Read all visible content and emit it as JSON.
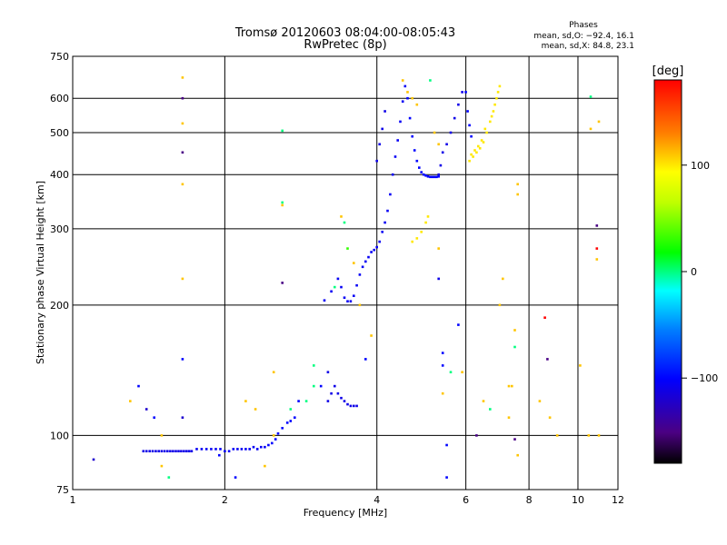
{
  "chart_data": {
    "type": "scatter",
    "title": "Tromsø 20120603 08:04:00-08:05:43",
    "subtitle": "RwPretec (8p)",
    "xlabel": "Frequency [MHz]",
    "ylabel": "Stationary phase Virtual Height [km]",
    "x_scale": "log",
    "y_scale": "log",
    "xlim": [
      1,
      12
    ],
    "ylim": [
      75,
      750
    ],
    "x_ticks": [
      1,
      2,
      4,
      6,
      8,
      10,
      12
    ],
    "y_ticks": [
      75,
      100,
      200,
      300,
      400,
      500,
      600,
      750
    ],
    "grid": true,
    "stats": {
      "heading": "Phases",
      "line1": "mean, sd,O: −92.4, 16.1",
      "line2": "mean, sd,X:  84.8, 23.1"
    },
    "colorbar": {
      "label": "[deg]",
      "min": -180,
      "max": 180,
      "ticks": [
        100,
        0,
        -100
      ],
      "placement": "right"
    },
    "series": [
      {
        "points": [
          [
            1.38,
            92,
            -110
          ],
          [
            1.4,
            92,
            -110
          ],
          [
            1.42,
            92,
            -110
          ],
          [
            1.44,
            92,
            -110
          ],
          [
            1.46,
            92,
            -110
          ],
          [
            1.48,
            92,
            -110
          ],
          [
            1.5,
            92,
            -110
          ],
          [
            1.52,
            92,
            -110
          ],
          [
            1.54,
            92,
            -110
          ],
          [
            1.56,
            92,
            -110
          ],
          [
            1.58,
            92,
            -110
          ],
          [
            1.6,
            92,
            -110
          ],
          [
            1.62,
            92,
            -110
          ],
          [
            1.64,
            92,
            -110
          ],
          [
            1.66,
            92,
            -110
          ],
          [
            1.68,
            92,
            -110
          ],
          [
            1.7,
            92,
            -110
          ],
          [
            1.72,
            92,
            -110
          ],
          [
            1.76,
            93,
            -105
          ],
          [
            1.8,
            93,
            -105
          ],
          [
            1.84,
            93,
            -105
          ],
          [
            1.88,
            93,
            -105
          ],
          [
            1.92,
            93,
            -105
          ],
          [
            1.96,
            93,
            -105
          ],
          [
            2.0,
            92,
            -105
          ],
          [
            2.04,
            92,
            -105
          ],
          [
            2.08,
            93,
            -105
          ],
          [
            2.12,
            93,
            -105
          ],
          [
            2.16,
            93,
            -105
          ],
          [
            2.2,
            93,
            -105
          ],
          [
            2.24,
            93,
            -105
          ],
          [
            2.28,
            94,
            -105
          ],
          [
            2.32,
            93,
            -105
          ],
          [
            2.36,
            94,
            -105
          ],
          [
            2.4,
            94,
            -105
          ],
          [
            2.44,
            95,
            -100
          ],
          [
            2.48,
            96,
            -100
          ],
          [
            2.52,
            98,
            -100
          ],
          [
            2.55,
            101,
            -100
          ],
          [
            2.6,
            104,
            -100
          ],
          [
            2.66,
            107,
            -100
          ],
          [
            2.7,
            108,
            -100
          ],
          [
            2.75,
            110,
            -100
          ],
          [
            3.2,
            120,
            -110
          ],
          [
            3.25,
            125,
            -110
          ],
          [
            3.3,
            130,
            -110
          ],
          [
            3.35,
            125,
            -110
          ],
          [
            3.4,
            122,
            -110
          ],
          [
            3.45,
            120,
            -110
          ],
          [
            3.5,
            118,
            -110
          ],
          [
            3.55,
            117,
            -110
          ],
          [
            3.6,
            117,
            -110
          ],
          [
            3.65,
            117,
            -110
          ],
          [
            3.15,
            205,
            -105
          ],
          [
            3.25,
            215,
            -105
          ],
          [
            3.35,
            230,
            -105
          ],
          [
            3.4,
            220,
            -105
          ],
          [
            3.45,
            208,
            -105
          ],
          [
            3.5,
            204,
            -105
          ],
          [
            3.55,
            204,
            -105
          ],
          [
            3.6,
            210,
            -105
          ],
          [
            3.65,
            222,
            -105
          ],
          [
            3.7,
            235,
            -105
          ],
          [
            3.75,
            245,
            -105
          ],
          [
            3.8,
            252,
            -105
          ],
          [
            3.85,
            258,
            -105
          ],
          [
            3.9,
            265,
            -105
          ],
          [
            3.95,
            268,
            -105
          ],
          [
            4.0,
            272,
            -105
          ],
          [
            4.05,
            280,
            -105
          ],
          [
            4.1,
            295,
            -105
          ],
          [
            4.15,
            310,
            -105
          ],
          [
            4.2,
            330,
            -105
          ],
          [
            4.25,
            360,
            -105
          ],
          [
            4.3,
            400,
            -105
          ],
          [
            4.35,
            440,
            -105
          ],
          [
            4.4,
            480,
            -105
          ],
          [
            4.45,
            530,
            -105
          ],
          [
            4.5,
            590,
            -105
          ],
          [
            4.55,
            640,
            -105
          ],
          [
            4.0,
            430,
            -110
          ],
          [
            4.05,
            470,
            -110
          ],
          [
            4.1,
            510,
            -110
          ],
          [
            4.15,
            560,
            -110
          ],
          [
            4.6,
            600,
            -100
          ],
          [
            4.65,
            540,
            -100
          ],
          [
            4.7,
            490,
            -100
          ],
          [
            4.75,
            455,
            -100
          ],
          [
            4.8,
            430,
            -100
          ],
          [
            4.85,
            415,
            -100
          ],
          [
            4.9,
            405,
            -100
          ],
          [
            4.95,
            400,
            -100
          ],
          [
            5.0,
            398,
            -100
          ],
          [
            5.05,
            396,
            -100
          ],
          [
            5.1,
            395,
            -100
          ],
          [
            5.15,
            395,
            -100
          ],
          [
            5.2,
            395,
            -100
          ],
          [
            5.25,
            395,
            -100
          ],
          [
            5.3,
            396,
            -100
          ],
          [
            5.3,
            400,
            -110
          ],
          [
            5.35,
            420,
            -110
          ],
          [
            5.4,
            450,
            -110
          ],
          [
            5.5,
            470,
            -110
          ],
          [
            5.6,
            500,
            -110
          ],
          [
            5.7,
            540,
            -110
          ],
          [
            5.8,
            580,
            -110
          ],
          [
            5.9,
            620,
            -110
          ],
          [
            6.0,
            620,
            -100
          ],
          [
            6.05,
            560,
            -100
          ],
          [
            6.1,
            520,
            -100
          ],
          [
            6.15,
            490,
            -100
          ],
          [
            4.7,
            280,
            100
          ],
          [
            4.8,
            285,
            100
          ],
          [
            4.9,
            295,
            100
          ],
          [
            5.0,
            310,
            100
          ],
          [
            5.05,
            320,
            100
          ],
          [
            6.1,
            430,
            100
          ],
          [
            6.2,
            440,
            100
          ],
          [
            6.3,
            450,
            100
          ],
          [
            6.4,
            460,
            100
          ],
          [
            6.5,
            475,
            100
          ],
          [
            6.6,
            500,
            100
          ],
          [
            6.7,
            530,
            100
          ],
          [
            6.8,
            560,
            100
          ],
          [
            6.9,
            600,
            100
          ],
          [
            7.0,
            640,
            100
          ],
          [
            6.15,
            445,
            100
          ],
          [
            6.25,
            455,
            100
          ],
          [
            6.35,
            465,
            100
          ],
          [
            6.45,
            480,
            100
          ],
          [
            6.55,
            510,
            100
          ],
          [
            6.75,
            545,
            100
          ],
          [
            6.85,
            580,
            100
          ],
          [
            6.95,
            620,
            100
          ]
        ]
      }
    ],
    "noise_points": [
      [
        1.1,
        88,
        -120
      ],
      [
        1.3,
        120,
        110
      ],
      [
        1.35,
        130,
        -100
      ],
      [
        1.4,
        115,
        -120
      ],
      [
        1.45,
        110,
        -100
      ],
      [
        1.5,
        100,
        110
      ],
      [
        1.5,
        85,
        110
      ],
      [
        1.55,
        80,
        0
      ],
      [
        1.65,
        450,
        -150
      ],
      [
        1.65,
        380,
        110
      ],
      [
        1.65,
        230,
        110
      ],
      [
        1.65,
        150,
        -100
      ],
      [
        1.65,
        600,
        -150
      ],
      [
        1.65,
        525,
        110
      ],
      [
        1.65,
        670,
        110
      ],
      [
        1.65,
        110,
        -120
      ],
      [
        1.95,
        90,
        -100
      ],
      [
        2.1,
        80,
        -100
      ],
      [
        2.2,
        120,
        110
      ],
      [
        2.3,
        115,
        110
      ],
      [
        2.4,
        85,
        110
      ],
      [
        2.5,
        100,
        110
      ],
      [
        2.5,
        140,
        110
      ],
      [
        2.6,
        505,
        0
      ],
      [
        2.6,
        345,
        0
      ],
      [
        2.6,
        340,
        110
      ],
      [
        2.6,
        225,
        -150
      ],
      [
        2.7,
        115,
        0
      ],
      [
        2.8,
        120,
        -100
      ],
      [
        2.9,
        120,
        0
      ],
      [
        3.0,
        145,
        0
      ],
      [
        3.0,
        130,
        0
      ],
      [
        3.1,
        130,
        -100
      ],
      [
        3.2,
        140,
        -110
      ],
      [
        3.3,
        220,
        0
      ],
      [
        3.4,
        320,
        110
      ],
      [
        3.45,
        310,
        0
      ],
      [
        3.5,
        270,
        30
      ],
      [
        3.6,
        250,
        110
      ],
      [
        3.7,
        200,
        110
      ],
      [
        3.8,
        150,
        -100
      ],
      [
        3.9,
        170,
        110
      ],
      [
        4.5,
        660,
        110
      ],
      [
        4.6,
        620,
        110
      ],
      [
        4.7,
        600,
        110
      ],
      [
        4.8,
        580,
        110
      ],
      [
        5.1,
        660,
        0
      ],
      [
        5.2,
        500,
        110
      ],
      [
        5.3,
        470,
        110
      ],
      [
        5.3,
        270,
        110
      ],
      [
        5.3,
        230,
        -110
      ],
      [
        5.4,
        155,
        -100
      ],
      [
        5.4,
        145,
        -100
      ],
      [
        5.4,
        125,
        110
      ],
      [
        5.5,
        95,
        -100
      ],
      [
        5.5,
        80,
        -100
      ],
      [
        5.6,
        140,
        0
      ],
      [
        5.8,
        180,
        -100
      ],
      [
        5.9,
        140,
        110
      ],
      [
        6.3,
        100,
        -150
      ],
      [
        6.5,
        120,
        110
      ],
      [
        6.7,
        115,
        0
      ],
      [
        7.0,
        200,
        110
      ],
      [
        7.1,
        230,
        110
      ],
      [
        7.3,
        130,
        110
      ],
      [
        7.3,
        110,
        110
      ],
      [
        7.4,
        130,
        110
      ],
      [
        7.5,
        175,
        110
      ],
      [
        7.5,
        160,
        0
      ],
      [
        7.5,
        98,
        -150
      ],
      [
        7.6,
        380,
        110
      ],
      [
        7.6,
        360,
        110
      ],
      [
        7.6,
        90,
        110
      ],
      [
        8.4,
        120,
        110
      ],
      [
        8.6,
        187,
        180
      ],
      [
        8.7,
        150,
        -150
      ],
      [
        8.8,
        110,
        110
      ],
      [
        9.1,
        100,
        110
      ],
      [
        10.1,
        145,
        110
      ],
      [
        10.5,
        100,
        110
      ],
      [
        10.6,
        605,
        0
      ],
      [
        10.6,
        510,
        110
      ],
      [
        10.9,
        305,
        -150
      ],
      [
        10.9,
        270,
        180
      ],
      [
        10.9,
        255,
        110
      ],
      [
        11.0,
        530,
        110
      ],
      [
        11.0,
        100,
        110
      ]
    ]
  }
}
